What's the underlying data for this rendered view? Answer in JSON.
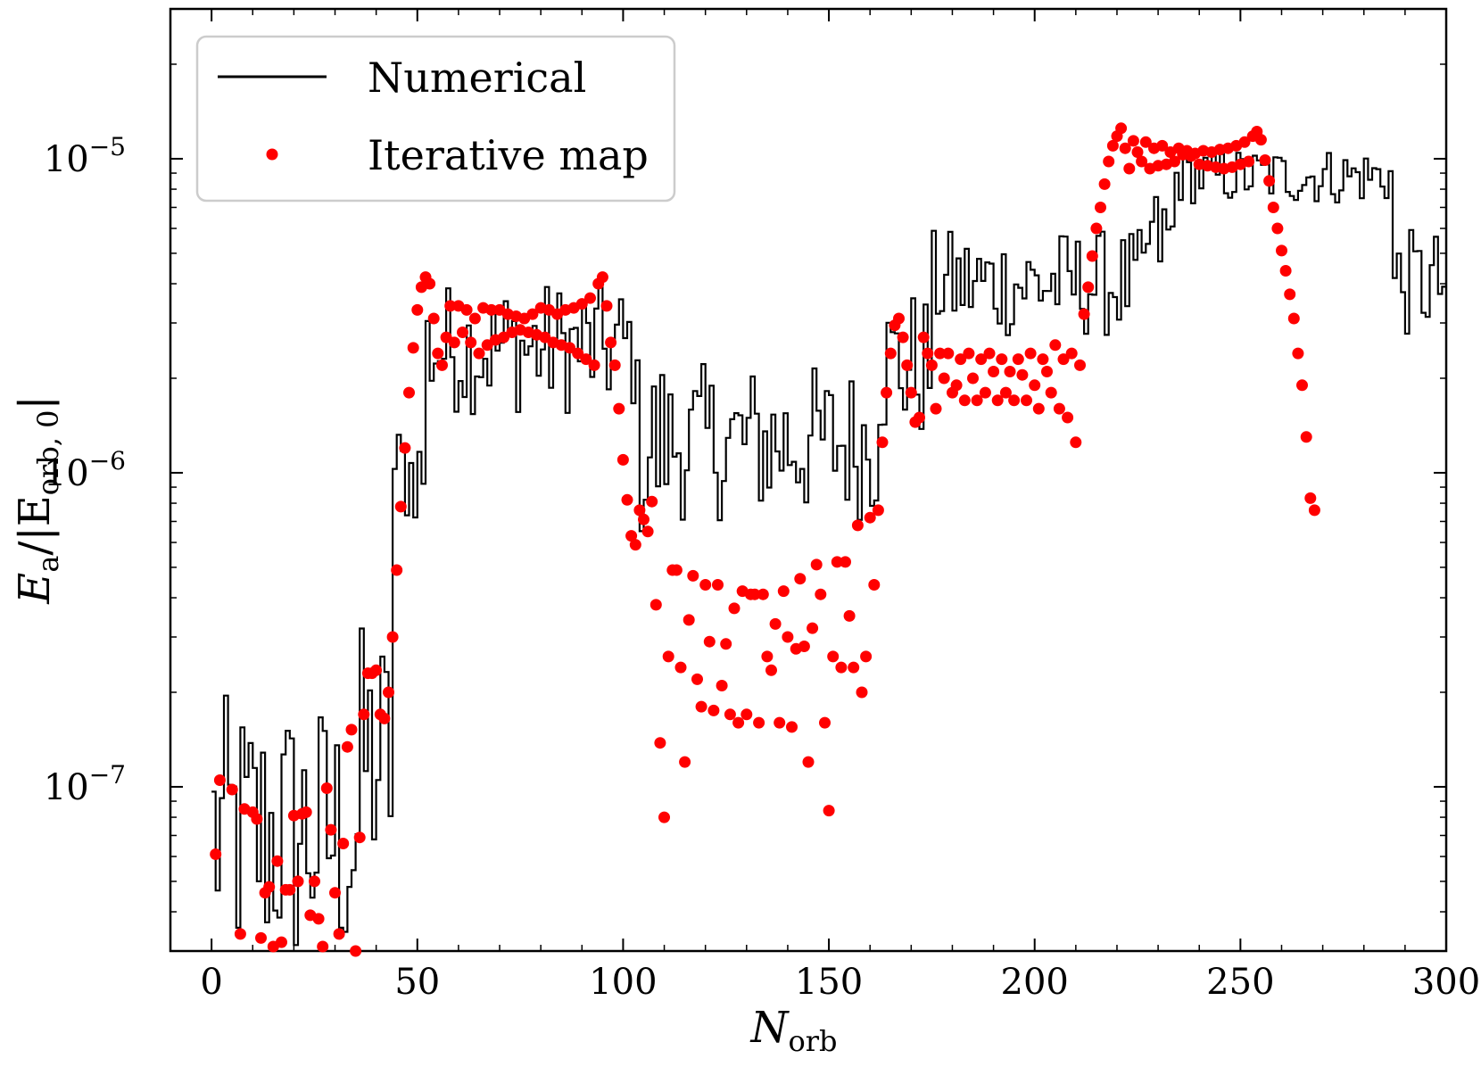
{
  "chart_data": {
    "type": "line+scatter",
    "title": "",
    "xlabel": "N",
    "xlabel_sub": "orb",
    "ylabel": "E_a/|E_orb, 0|",
    "ylabel_main": "E",
    "ylabel_a": "a",
    "ylabel_rest": "/|E",
    "ylabel_sub": "orb, 0",
    "ylabel_close": "|",
    "xscale": "linear",
    "yscale": "log",
    "xlim": [
      -10,
      300
    ],
    "ylim": [
      3e-08,
      3e-05
    ],
    "x_ticks": [
      0,
      50,
      100,
      150,
      200,
      250,
      300
    ],
    "x_tick_labels": [
      "0",
      "50",
      "100",
      "150",
      "200",
      "250",
      "300"
    ],
    "y_ticks": [
      1e-07,
      1e-06,
      1e-05
    ],
    "y_tick_labels": [
      {
        "base": "10",
        "exp": "−7"
      },
      {
        "base": "10",
        "exp": "−6"
      },
      {
        "base": "10",
        "exp": "−5"
      }
    ],
    "grid": false,
    "legend": {
      "placement": "top-left",
      "entries": [
        {
          "label": "Numerical",
          "marker": "line",
          "color": "#000000"
        },
        {
          "label": "Iterative map",
          "marker": "dot",
          "color": "#ff0000"
        }
      ]
    },
    "series": [
      {
        "name": "Numerical",
        "kind": "step",
        "color": "#000000",
        "segments": [
          {
            "x0": 0,
            "x1": 36,
            "center": 7e-08,
            "jitter": 1.6
          },
          {
            "x0": 36,
            "x1": 44,
            "center": 1.2e-07,
            "jitter": 1.6
          },
          {
            "x0": 44,
            "x1": 52,
            "center": 1e-06,
            "jitter": 1.2
          },
          {
            "x0": 52,
            "x1": 103,
            "center": 2.5e-06,
            "jitter": 1.25
          },
          {
            "x0": 103,
            "x1": 110,
            "center": 1.2e-06,
            "jitter": 1.4
          },
          {
            "x0": 110,
            "x1": 162,
            "center": 1.25e-06,
            "jitter": 1.3
          },
          {
            "x0": 162,
            "x1": 175,
            "center": 2.2e-06,
            "jitter": 1.3
          },
          {
            "x0": 175,
            "x1": 227,
            "center": 4e-06,
            "jitter": 1.2
          },
          {
            "x0": 227,
            "x1": 234,
            "center": 5.5e-06,
            "jitter": 1.2
          },
          {
            "x0": 234,
            "x1": 287,
            "center": 8.8e-06,
            "jitter": 1.1
          },
          {
            "x0": 287,
            "x1": 300,
            "center": 4e-06,
            "jitter": 1.2
          }
        ]
      },
      {
        "name": "Iterative map",
        "kind": "scatter",
        "color": "#ff0000",
        "points": [
          [
            1,
            6.1e-08
          ],
          [
            2,
            1.05e-07
          ],
          [
            5,
            9.8e-08
          ],
          [
            7,
            3.4e-08
          ],
          [
            8,
            8.5e-08
          ],
          [
            10,
            8.3e-08
          ],
          [
            11,
            7.9e-08
          ],
          [
            12,
            3.3e-08
          ],
          [
            13,
            4.6e-08
          ],
          [
            14,
            4.8e-08
          ],
          [
            15,
            3.1e-08
          ],
          [
            16,
            5.8e-08
          ],
          [
            17,
            3.2e-08
          ],
          [
            18,
            4.7e-08
          ],
          [
            19,
            4.7e-08
          ],
          [
            20,
            8.1e-08
          ],
          [
            21,
            5e-08
          ],
          [
            22,
            8.2e-08
          ],
          [
            23,
            8.3e-08
          ],
          [
            24,
            3.9e-08
          ],
          [
            25,
            5e-08
          ],
          [
            26,
            3.8e-08
          ],
          [
            27,
            3.1e-08
          ],
          [
            28,
            9.9e-08
          ],
          [
            29,
            7.3e-08
          ],
          [
            30,
            4.6e-08
          ],
          [
            31,
            3.4e-08
          ],
          [
            32,
            6.6e-08
          ],
          [
            33,
            1.34e-07
          ],
          [
            34,
            1.52e-07
          ],
          [
            35,
            3e-08
          ],
          [
            36,
            6.9e-08
          ],
          [
            37,
            1.7e-07
          ],
          [
            38,
            2.3e-07
          ],
          [
            39,
            2.3e-07
          ],
          [
            40,
            2.35e-07
          ],
          [
            41,
            1.7e-07
          ],
          [
            42,
            1.65e-07
          ],
          [
            43,
            2e-07
          ],
          [
            44,
            3e-07
          ],
          [
            45,
            4.9e-07
          ],
          [
            46,
            7.8e-07
          ],
          [
            47,
            1.2e-06
          ],
          [
            48,
            1.8e-06
          ],
          [
            49,
            2.5e-06
          ],
          [
            50,
            3.3e-06
          ],
          [
            51,
            3.9e-06
          ],
          [
            52,
            4.2e-06
          ],
          [
            53,
            4e-06
          ],
          [
            54,
            3.1e-06
          ],
          [
            55,
            2.4e-06
          ],
          [
            56,
            2.2e-06
          ],
          [
            57,
            2.7e-06
          ],
          [
            58,
            3.4e-06
          ],
          [
            59,
            2.6e-06
          ],
          [
            60,
            3.4e-06
          ],
          [
            61,
            2.8e-06
          ],
          [
            62,
            3.3e-06
          ],
          [
            63,
            2.6e-06
          ],
          [
            64,
            3.1e-06
          ],
          [
            65,
            2.4e-06
          ],
          [
            66,
            3.35e-06
          ],
          [
            67,
            2.55e-06
          ],
          [
            68,
            3.3e-06
          ],
          [
            69,
            2.65e-06
          ],
          [
            70,
            3.3e-06
          ],
          [
            71,
            2.7e-06
          ],
          [
            72,
            3.2e-06
          ],
          [
            73,
            2.8e-06
          ],
          [
            74,
            3.15e-06
          ],
          [
            75,
            2.85e-06
          ],
          [
            76,
            3.1e-06
          ],
          [
            77,
            2.8e-06
          ],
          [
            78,
            3.2e-06
          ],
          [
            79,
            2.75e-06
          ],
          [
            80,
            3.35e-06
          ],
          [
            81,
            2.7e-06
          ],
          [
            82,
            3.3e-06
          ],
          [
            83,
            2.6e-06
          ],
          [
            84,
            3.2e-06
          ],
          [
            85,
            2.55e-06
          ],
          [
            86,
            3.3e-06
          ],
          [
            87,
            2.5e-06
          ],
          [
            88,
            3.35e-06
          ],
          [
            89,
            2.4e-06
          ],
          [
            90,
            3.45e-06
          ],
          [
            91,
            2.3e-06
          ],
          [
            92,
            3.6e-06
          ],
          [
            93,
            2.2e-06
          ],
          [
            94,
            4e-06
          ],
          [
            95,
            4.2e-06
          ],
          [
            96,
            3.4e-06
          ],
          [
            97,
            2.6e-06
          ],
          [
            98,
            2.2e-06
          ],
          [
            99,
            1.6e-06
          ],
          [
            100,
            1.1e-06
          ],
          [
            101,
            8.2e-07
          ],
          [
            102,
            6.3e-07
          ],
          [
            103,
            5.9e-07
          ],
          [
            104,
            7.6e-07
          ],
          [
            105,
            7.1e-07
          ],
          [
            106,
            6.5e-07
          ],
          [
            107,
            8.1e-07
          ],
          [
            108,
            3.8e-07
          ],
          [
            109,
            1.38e-07
          ],
          [
            110,
            8e-08
          ],
          [
            111,
            2.6e-07
          ],
          [
            112,
            4.9e-07
          ],
          [
            113,
            4.9e-07
          ],
          [
            114,
            2.4e-07
          ],
          [
            115,
            1.2e-07
          ],
          [
            116,
            3.4e-07
          ],
          [
            117,
            4.7e-07
          ],
          [
            118,
            2.2e-07
          ],
          [
            119,
            1.8e-07
          ],
          [
            120,
            4.4e-07
          ],
          [
            121,
            2.9e-07
          ],
          [
            122,
            1.75e-07
          ],
          [
            123,
            4.4e-07
          ],
          [
            124,
            2.1e-07
          ],
          [
            125,
            2.85e-07
          ],
          [
            126,
            1.7e-07
          ],
          [
            127,
            3.7e-07
          ],
          [
            128,
            1.6e-07
          ],
          [
            129,
            4.2e-07
          ],
          [
            130,
            1.7e-07
          ],
          [
            131,
            4.1e-07
          ],
          [
            132,
            4.1e-07
          ],
          [
            133,
            1.6e-07
          ],
          [
            134,
            4.1e-07
          ],
          [
            135,
            2.6e-07
          ],
          [
            136,
            2.35e-07
          ],
          [
            137,
            3.3e-07
          ],
          [
            138,
            1.6e-07
          ],
          [
            139,
            4.2e-07
          ],
          [
            140,
            3e-07
          ],
          [
            141,
            1.55e-07
          ],
          [
            142,
            2.75e-07
          ],
          [
            143,
            4.6e-07
          ],
          [
            144,
            2.8e-07
          ],
          [
            145,
            1.2e-07
          ],
          [
            146,
            3.2e-07
          ],
          [
            147,
            5.1e-07
          ],
          [
            148,
            4.1e-07
          ],
          [
            149,
            1.6e-07
          ],
          [
            150,
            8.4e-08
          ],
          [
            151,
            2.6e-07
          ],
          [
            152,
            5.2e-07
          ],
          [
            153,
            2.4e-07
          ],
          [
            154,
            5.2e-07
          ],
          [
            155,
            3.5e-07
          ],
          [
            156,
            2.4e-07
          ],
          [
            157,
            6.8e-07
          ],
          [
            158,
            2e-07
          ],
          [
            159,
            2.6e-07
          ],
          [
            160,
            7.2e-07
          ],
          [
            161,
            4.4e-07
          ],
          [
            162,
            7.6e-07
          ],
          [
            163,
            1.25e-06
          ],
          [
            164,
            1.8e-06
          ],
          [
            165,
            2.4e-06
          ],
          [
            166,
            2.95e-06
          ],
          [
            167,
            3.1e-06
          ],
          [
            168,
            2.7e-06
          ],
          [
            169,
            2.2e-06
          ],
          [
            170,
            1.8e-06
          ],
          [
            171,
            1.45e-06
          ],
          [
            172,
            1.5e-06
          ],
          [
            173,
            2.7e-06
          ],
          [
            174,
            2.4e-06
          ],
          [
            175,
            2.2e-06
          ],
          [
            176,
            1.6e-06
          ],
          [
            177,
            2.4e-06
          ],
          [
            178,
            2e-06
          ],
          [
            179,
            2.4e-06
          ],
          [
            180,
            1.8e-06
          ],
          [
            181,
            1.9e-06
          ],
          [
            182,
            2.3e-06
          ],
          [
            183,
            1.7e-06
          ],
          [
            184,
            2.4e-06
          ],
          [
            185,
            2e-06
          ],
          [
            186,
            1.7e-06
          ],
          [
            187,
            2.3e-06
          ],
          [
            188,
            1.8e-06
          ],
          [
            189,
            2.4e-06
          ],
          [
            190,
            2.1e-06
          ],
          [
            191,
            1.7e-06
          ],
          [
            192,
            2.3e-06
          ],
          [
            193,
            1.8e-06
          ],
          [
            194,
            2.1e-06
          ],
          [
            195,
            1.7e-06
          ],
          [
            196,
            2.3e-06
          ],
          [
            197,
            2.05e-06
          ],
          [
            198,
            1.7e-06
          ],
          [
            199,
            2.4e-06
          ],
          [
            200,
            1.9e-06
          ],
          [
            201,
            1.6e-06
          ],
          [
            202,
            2.3e-06
          ],
          [
            203,
            2.1e-06
          ],
          [
            204,
            1.8e-06
          ],
          [
            205,
            2.55e-06
          ],
          [
            206,
            1.6e-06
          ],
          [
            207,
            2.3e-06
          ],
          [
            208,
            1.5e-06
          ],
          [
            209,
            2.4e-06
          ],
          [
            210,
            1.25e-06
          ],
          [
            211,
            2.2e-06
          ],
          [
            212,
            3.2e-06
          ],
          [
            213,
            3.9e-06
          ],
          [
            214,
            4.9e-06
          ],
          [
            215,
            6e-06
          ],
          [
            216,
            7e-06
          ],
          [
            217,
            8.3e-06
          ],
          [
            218,
            9.8e-06
          ],
          [
            219,
            1.1e-05
          ],
          [
            220,
            1.18e-05
          ],
          [
            221,
            1.25e-05
          ],
          [
            222,
            1.08e-05
          ],
          [
            223,
            9.3e-06
          ],
          [
            224,
            1.14e-05
          ],
          [
            225,
            1.05e-05
          ],
          [
            226,
            9.8e-06
          ],
          [
            227,
            1.13e-05
          ],
          [
            228,
            9.3e-06
          ],
          [
            229,
            1.08e-05
          ],
          [
            230,
            9.5e-06
          ],
          [
            231,
            1.1e-05
          ],
          [
            232,
            9.6e-06
          ],
          [
            233,
            1.05e-05
          ],
          [
            234,
            9.8e-06
          ],
          [
            235,
            1.08e-05
          ],
          [
            236,
            1.03e-05
          ],
          [
            237,
            1.06e-05
          ],
          [
            238,
            1.02e-05
          ],
          [
            239,
            1.04e-05
          ],
          [
            240,
            9.6e-06
          ],
          [
            241,
            1.06e-05
          ],
          [
            242,
            9.5e-06
          ],
          [
            243,
            1.05e-05
          ],
          [
            244,
            9.4e-06
          ],
          [
            245,
            1.07e-05
          ],
          [
            246,
            9.3e-06
          ],
          [
            247,
            1.08e-05
          ],
          [
            248,
            9.4e-06
          ],
          [
            249,
            1.1e-05
          ],
          [
            250,
            9.6e-06
          ],
          [
            251,
            1.13e-05
          ],
          [
            252,
            9.8e-06
          ],
          [
            253,
            1.18e-05
          ],
          [
            254,
            1.22e-05
          ],
          [
            255,
            1.15e-05
          ],
          [
            256,
            9.9e-06
          ],
          [
            257,
            8.5e-06
          ],
          [
            258,
            7e-06
          ],
          [
            259,
            6e-06
          ],
          [
            260,
            5.1e-06
          ],
          [
            261,
            4.4e-06
          ],
          [
            262,
            3.7e-06
          ],
          [
            263,
            3.1e-06
          ],
          [
            264,
            2.4e-06
          ],
          [
            265,
            1.9e-06
          ],
          [
            266,
            1.3e-06
          ],
          [
            267,
            8.3e-07
          ],
          [
            268,
            7.6e-07
          ]
        ]
      }
    ]
  }
}
